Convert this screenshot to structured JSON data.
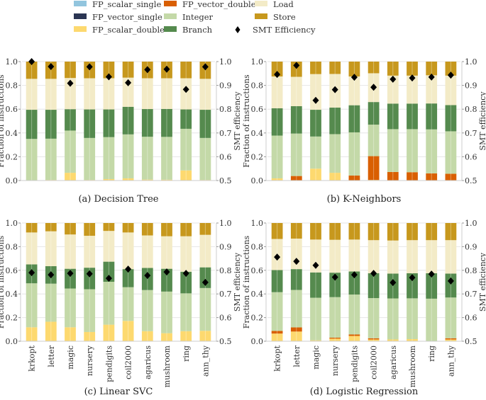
{
  "legend": [
    {
      "label": "FP_scalar_single",
      "color": "#92c5de",
      "kind": "box"
    },
    {
      "label": "FP_vector_single",
      "color": "#2b3553",
      "kind": "box"
    },
    {
      "label": "FP_scalar_double",
      "color": "#fdd96f",
      "kind": "box"
    },
    {
      "label": "FP_vector_double",
      "color": "#d95f02",
      "kind": "box"
    },
    {
      "label": "Integer",
      "color": "#c4d9a8",
      "kind": "box"
    },
    {
      "label": "Branch",
      "color": "#558a4e",
      "kind": "box"
    },
    {
      "label": "Load",
      "color": "#f3ebc7",
      "kind": "box"
    },
    {
      "label": "Store",
      "color": "#c7981d",
      "kind": "box"
    },
    {
      "label": "SMT Efficiency",
      "color": "#000000",
      "kind": "diamond"
    }
  ],
  "chart_data": [
    {
      "type": "bar",
      "stacked": true,
      "title": "(a) Decision Tree",
      "ylabel": "Fraction of instructions",
      "y2label": "SMT efficiency",
      "ylim": [
        0,
        1.0
      ],
      "y2lim": [
        0.5,
        1.0
      ],
      "yticks": [
        "0.0",
        "0.2",
        "0.4",
        "0.6",
        "0.8",
        "1.0"
      ],
      "y2ticks": [
        "0.5",
        "0.6",
        "0.7",
        "0.8",
        "0.9",
        "1.0"
      ],
      "categories": [
        "krkopt",
        "letter",
        "magic",
        "nursery",
        "pendigits",
        "coil2000",
        "agaricus",
        "mushroom",
        "ring",
        "ann_thy"
      ],
      "show_xticklabels": false,
      "series": [
        {
          "name": "FP_scalar_single",
          "values": [
            0,
            0,
            0,
            0,
            0,
            0,
            0,
            0,
            0,
            0
          ]
        },
        {
          "name": "FP_vector_single",
          "values": [
            0,
            0,
            0,
            0,
            0,
            0,
            0,
            0,
            0,
            0
          ]
        },
        {
          "name": "FP_scalar_double",
          "values": [
            0.0,
            0.005,
            0.065,
            0.005,
            0.012,
            0.018,
            0.008,
            0.007,
            0.085,
            0.005
          ]
        },
        {
          "name": "FP_vector_double",
          "values": [
            0,
            0,
            0,
            0,
            0,
            0,
            0,
            0,
            0,
            0
          ]
        },
        {
          "name": "Integer",
          "values": [
            0.35,
            0.347,
            0.355,
            0.353,
            0.353,
            0.37,
            0.36,
            0.36,
            0.35,
            0.353
          ]
        },
        {
          "name": "Branch",
          "values": [
            0.245,
            0.243,
            0.18,
            0.24,
            0.233,
            0.232,
            0.233,
            0.235,
            0.163,
            0.237
          ]
        },
        {
          "name": "Load",
          "values": [
            0.26,
            0.26,
            0.262,
            0.262,
            0.262,
            0.245,
            0.259,
            0.258,
            0.262,
            0.26
          ]
        },
        {
          "name": "Store",
          "values": [
            0.145,
            0.145,
            0.138,
            0.14,
            0.14,
            0.135,
            0.14,
            0.14,
            0.14,
            0.145
          ]
        }
      ],
      "smt_efficiency": [
        1.0,
        0.979,
        0.909,
        0.978,
        0.936,
        0.911,
        0.966,
        0.968,
        0.883,
        0.978
      ]
    },
    {
      "type": "bar",
      "stacked": true,
      "title": "(b) K-Neighbors",
      "ylabel": "Fraction of instructions",
      "y2label": "SMT efficiency",
      "ylim": [
        0,
        1.0
      ],
      "y2lim": [
        0.5,
        1.0
      ],
      "yticks": [
        "0.0",
        "0.2",
        "0.4",
        "0.6",
        "0.8",
        "1.0"
      ],
      "y2ticks": [
        "0.5",
        "0.6",
        "0.7",
        "0.8",
        "0.9",
        "1.0"
      ],
      "categories": [
        "krkopt",
        "letter",
        "magic",
        "nursery",
        "pendigits",
        "coil2000",
        "agaricus",
        "mushroom",
        "ring",
        "ann_thy"
      ],
      "show_xticklabels": false,
      "series": [
        {
          "name": "FP_scalar_single",
          "values": [
            0,
            0,
            0,
            0,
            0,
            0,
            0,
            0,
            0,
            0
          ]
        },
        {
          "name": "FP_vector_single",
          "values": [
            0,
            0,
            0,
            0,
            0,
            0,
            0,
            0,
            0,
            0
          ]
        },
        {
          "name": "FP_scalar_double",
          "values": [
            0.018,
            0.0,
            0.1,
            0.065,
            0.0,
            0.005,
            0.0,
            0.0,
            0.0,
            0.0
          ]
        },
        {
          "name": "FP_vector_double",
          "values": [
            0.0,
            0.038,
            0.0,
            0.0,
            0.042,
            0.2,
            0.072,
            0.07,
            0.06,
            0.057
          ]
        },
        {
          "name": "Integer",
          "values": [
            0.36,
            0.357,
            0.27,
            0.325,
            0.363,
            0.265,
            0.36,
            0.362,
            0.37,
            0.357
          ]
        },
        {
          "name": "Branch",
          "values": [
            0.23,
            0.23,
            0.225,
            0.223,
            0.228,
            0.19,
            0.215,
            0.215,
            0.218,
            0.22
          ]
        },
        {
          "name": "Load",
          "values": [
            0.267,
            0.247,
            0.3,
            0.283,
            0.242,
            0.242,
            0.235,
            0.235,
            0.237,
            0.248
          ]
        },
        {
          "name": "Store",
          "values": [
            0.125,
            0.128,
            0.105,
            0.104,
            0.125,
            0.098,
            0.118,
            0.118,
            0.115,
            0.118
          ]
        }
      ],
      "smt_efficiency": [
        0.946,
        0.984,
        0.837,
        0.882,
        0.934,
        0.892,
        0.926,
        0.931,
        0.935,
        0.943
      ]
    },
    {
      "type": "bar",
      "stacked": true,
      "title": "(c) Linear SVC",
      "ylabel": "Fraction of instructions",
      "y2label": "SMT efficiency",
      "ylim": [
        0,
        1.0
      ],
      "y2lim": [
        0.5,
        1.0
      ],
      "yticks": [
        "0.0",
        "0.2",
        "0.4",
        "0.6",
        "0.8",
        "1.0"
      ],
      "y2ticks": [
        "0.5",
        "0.6",
        "0.7",
        "0.8",
        "0.9",
        "1.0"
      ],
      "categories": [
        "krkopt",
        "letter",
        "magic",
        "nursery",
        "pendigits",
        "coil2000",
        "agaricus",
        "mushroom",
        "ring",
        "ann_thy"
      ],
      "show_xticklabels": true,
      "series": [
        {
          "name": "FP_scalar_single",
          "values": [
            0,
            0,
            0,
            0,
            0,
            0,
            0,
            0,
            0,
            0
          ]
        },
        {
          "name": "FP_vector_single",
          "values": [
            0,
            0,
            0,
            0,
            0,
            0,
            0,
            0,
            0,
            0
          ]
        },
        {
          "name": "FP_scalar_double",
          "values": [
            0.118,
            0.165,
            0.118,
            0.078,
            0.14,
            0.172,
            0.085,
            0.068,
            0.085,
            0.088
          ]
        },
        {
          "name": "FP_vector_double",
          "values": [
            0,
            0,
            0,
            0,
            0,
            0,
            0,
            0,
            0,
            0
          ]
        },
        {
          "name": "Integer",
          "values": [
            0.372,
            0.322,
            0.328,
            0.362,
            0.363,
            0.285,
            0.348,
            0.352,
            0.32,
            0.362
          ]
        },
        {
          "name": "Branch",
          "values": [
            0.16,
            0.148,
            0.167,
            0.182,
            0.17,
            0.153,
            0.187,
            0.193,
            0.183,
            0.175
          ]
        },
        {
          "name": "Load",
          "values": [
            0.27,
            0.295,
            0.29,
            0.27,
            0.26,
            0.31,
            0.275,
            0.275,
            0.3,
            0.275
          ]
        },
        {
          "name": "Store",
          "values": [
            0.08,
            0.07,
            0.097,
            0.108,
            0.067,
            0.08,
            0.105,
            0.112,
            0.112,
            0.1
          ]
        }
      ],
      "smt_efficiency": [
        0.79,
        0.781,
        0.787,
        0.785,
        0.766,
        0.805,
        0.778,
        0.793,
        0.787,
        0.749
      ]
    },
    {
      "type": "bar",
      "stacked": true,
      "title": "(d) Logistic Regression",
      "ylabel": "Fraction of instructions",
      "y2label": "SMT efficiency",
      "ylim": [
        0,
        1.0
      ],
      "y2lim": [
        0.5,
        1.0
      ],
      "yticks": [
        "0.0",
        "0.2",
        "0.4",
        "0.6",
        "0.8",
        "1.0"
      ],
      "y2ticks": [
        "0.5",
        "0.6",
        "0.7",
        "0.8",
        "0.9",
        "1.0"
      ],
      "categories": [
        "krkopt",
        "letter",
        "magic",
        "nursery",
        "pendigits",
        "coil2000",
        "agaricus",
        "mushroom",
        "ring",
        "ann_thy"
      ],
      "show_xticklabels": true,
      "series": [
        {
          "name": "FP_scalar_single",
          "values": [
            0,
            0,
            0,
            0,
            0,
            0,
            0,
            0,
            0,
            0
          ]
        },
        {
          "name": "FP_vector_single",
          "values": [
            0,
            0,
            0,
            0,
            0,
            0,
            0,
            0,
            0,
            0
          ]
        },
        {
          "name": "FP_scalar_double",
          "values": [
            0.065,
            0.082,
            0.008,
            0.022,
            0.045,
            0.015,
            0.015,
            0.018,
            0.003,
            0.015
          ]
        },
        {
          "name": "FP_vector_double",
          "values": [
            0.022,
            0.035,
            0.0,
            0.008,
            0.012,
            0.01,
            0.0,
            0.0,
            0.0,
            0.01
          ]
        },
        {
          "name": "Integer",
          "values": [
            0.328,
            0.317,
            0.36,
            0.343,
            0.338,
            0.34,
            0.347,
            0.345,
            0.357,
            0.345
          ]
        },
        {
          "name": "Branch",
          "values": [
            0.187,
            0.176,
            0.214,
            0.207,
            0.195,
            0.21,
            0.21,
            0.212,
            0.215,
            0.202
          ]
        },
        {
          "name": "Load",
          "values": [
            0.263,
            0.258,
            0.278,
            0.278,
            0.27,
            0.28,
            0.28,
            0.28,
            0.28,
            0.283
          ]
        },
        {
          "name": "Store",
          "values": [
            0.135,
            0.132,
            0.14,
            0.142,
            0.14,
            0.145,
            0.148,
            0.145,
            0.145,
            0.145
          ]
        }
      ],
      "smt_efficiency": [
        0.856,
        0.838,
        0.821,
        0.771,
        0.781,
        0.787,
        0.748,
        0.769,
        0.784,
        0.755
      ]
    }
  ]
}
